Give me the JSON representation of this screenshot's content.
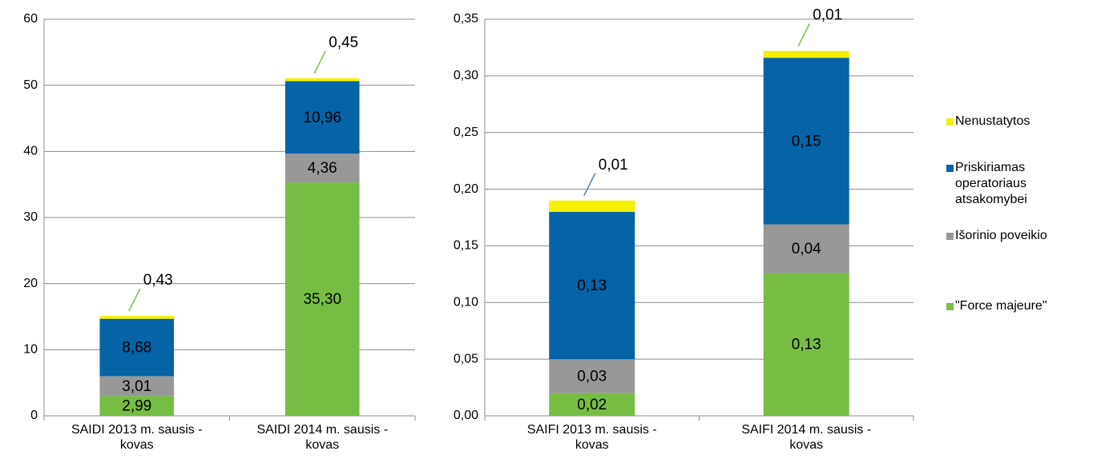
{
  "chart_data": [
    {
      "type": "bar",
      "stacked": true,
      "categories": [
        "SAIDI 2013 m. sausis - kovas",
        "SAIDI 2014 m. sausis - kovas"
      ],
      "series": [
        {
          "name": "\"Force majeure\"",
          "color": "#77bd43",
          "values": [
            2.99,
            35.3
          ],
          "value_labels": [
            "2,99",
            "35,30"
          ]
        },
        {
          "name": "Išorinio poveikio",
          "color": "#989898",
          "values": [
            3.01,
            4.36
          ],
          "value_labels": [
            "3,01",
            "4,36"
          ]
        },
        {
          "name": "Priskiriamas operatoriaus atsakomybei",
          "color": "#0563a6",
          "values": [
            8.68,
            10.96
          ],
          "value_labels": [
            "8,68",
            "10,96"
          ]
        },
        {
          "name": "Nenustatytos",
          "color": "#f5f000",
          "values": [
            0.43,
            0.45
          ],
          "value_labels": [
            "0,43",
            "0,45"
          ]
        }
      ],
      "ylim": [
        0,
        60
      ],
      "yticks": [
        0,
        10,
        20,
        30,
        40,
        50,
        60
      ],
      "grid": true,
      "legend": "right"
    },
    {
      "type": "bar",
      "stacked": true,
      "categories": [
        "SAIFI 2013 m. sausis - kovas",
        "SAIFI 2014 m. sausis - kovas"
      ],
      "series": [
        {
          "color": "#77bd43",
          "values": [
            0.02,
            0.126
          ],
          "value_labels": [
            "0,02",
            "0,13"
          ]
        },
        {
          "color": "#989898",
          "values": [
            0.03,
            0.043
          ],
          "value_labels": [
            "0,03",
            "0,04"
          ]
        },
        {
          "color": "#0563a6",
          "values": [
            0.13,
            0.147
          ],
          "value_labels": [
            "0,13",
            "0,15"
          ]
        },
        {
          "color": "#f5f000",
          "values": [
            0.01,
            0.006
          ],
          "value_labels": [
            "0,01",
            "0,01"
          ]
        }
      ],
      "ylim": [
        0,
        0.35
      ],
      "yticks": [
        {
          "value": 0,
          "label": "0,00"
        },
        {
          "value": 0.05,
          "label": "0,05"
        },
        {
          "value": 0.1,
          "label": "0,10"
        },
        {
          "value": 0.15,
          "label": "0,15"
        },
        {
          "value": 0.2,
          "label": "0,20"
        },
        {
          "value": 0.25,
          "label": "0,25"
        },
        {
          "value": 0.3,
          "label": "0,30"
        },
        {
          "value": 0.35,
          "label": "0,35"
        }
      ],
      "grid": true
    }
  ]
}
